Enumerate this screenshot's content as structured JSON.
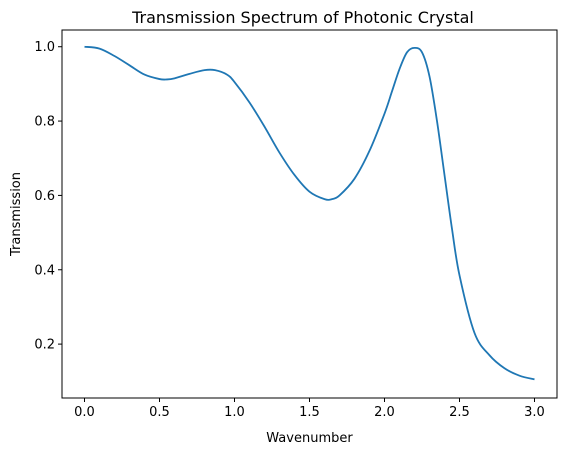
{
  "chart_data": {
    "type": "line",
    "title": "Transmission Spectrum of Photonic Crystal",
    "xlabel": "Wavenumber",
    "ylabel": "Transmission",
    "xlim": [
      -0.15,
      3.15
    ],
    "ylim": [
      0.055,
      1.045
    ],
    "xticks": [
      0.0,
      0.5,
      1.0,
      1.5,
      2.0,
      2.5,
      3.0
    ],
    "xtick_labels": [
      "0.0",
      "0.5",
      "1.0",
      "1.5",
      "2.0",
      "2.5",
      "3.0"
    ],
    "yticks": [
      0.2,
      0.4,
      0.6,
      0.8,
      1.0
    ],
    "ytick_labels": [
      "0.2",
      "0.4",
      "0.6",
      "0.8",
      "1.0"
    ],
    "grid": false,
    "series": [
      {
        "color": "#1f77b4",
        "x": [
          0.0,
          0.1,
          0.2,
          0.3,
          0.4,
          0.5,
          0.55,
          0.6,
          0.7,
          0.8,
          0.87,
          0.95,
          1.0,
          1.1,
          1.2,
          1.3,
          1.4,
          1.5,
          1.6,
          1.65,
          1.7,
          1.8,
          1.9,
          2.0,
          2.05,
          2.1,
          2.15,
          2.2,
          2.25,
          2.3,
          2.35,
          2.4,
          2.45,
          2.5,
          2.6,
          2.7,
          2.8,
          2.9,
          3.0
        ],
        "y": [
          1.0,
          0.995,
          0.975,
          0.95,
          0.925,
          0.913,
          0.912,
          0.915,
          0.927,
          0.937,
          0.937,
          0.925,
          0.905,
          0.85,
          0.785,
          0.715,
          0.655,
          0.61,
          0.59,
          0.59,
          0.6,
          0.645,
          0.72,
          0.82,
          0.88,
          0.94,
          0.985,
          0.997,
          0.985,
          0.92,
          0.8,
          0.655,
          0.51,
          0.385,
          0.23,
          0.17,
          0.135,
          0.115,
          0.105
        ]
      }
    ]
  }
}
